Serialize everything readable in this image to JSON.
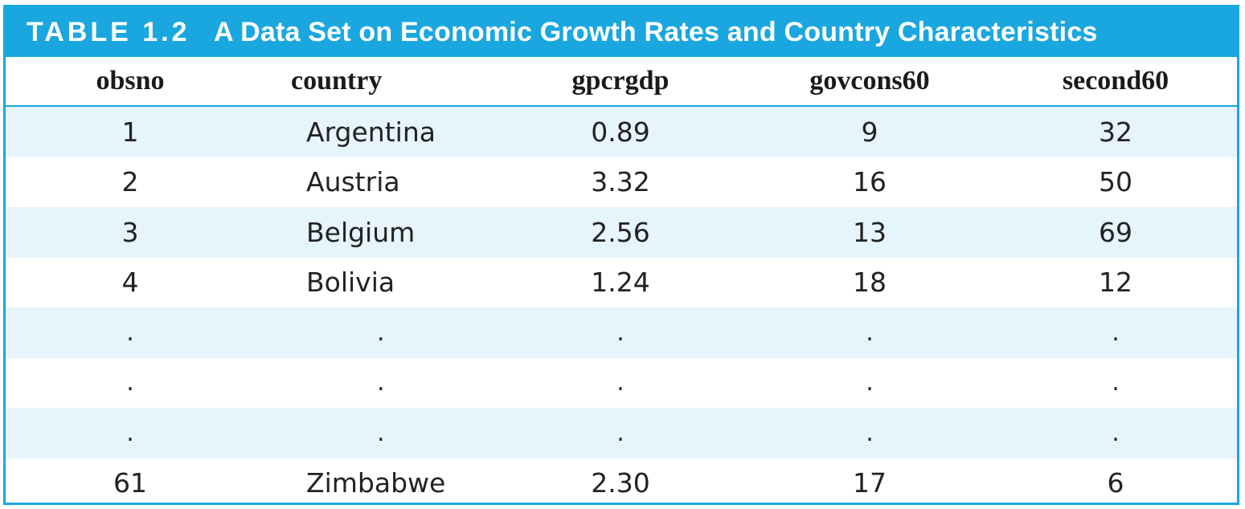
{
  "title": {
    "number": "TABLE 1.2",
    "text": "A Data Set on Economic Growth Rates and Country Characteristics"
  },
  "columns": [
    "obsno",
    "country",
    "gpcrgdp",
    "govcons60",
    "second60"
  ],
  "rows": [
    [
      "1",
      "Argentina",
      "0.89",
      "9",
      "32"
    ],
    [
      "2",
      "Austria",
      "3.32",
      "16",
      "50"
    ],
    [
      "3",
      "Belgium",
      "2.56",
      "13",
      "69"
    ],
    [
      "4",
      "Bolivia",
      "1.24",
      "18",
      "12"
    ],
    [
      ".",
      ".",
      ".",
      ".",
      "."
    ],
    [
      ".",
      ".",
      ".",
      ".",
      "."
    ],
    [
      ".",
      ".",
      ".",
      ".",
      "."
    ],
    [
      "61",
      "Zimbabwe",
      "2.30",
      "17",
      "6"
    ]
  ],
  "colors": {
    "accent": "#1aa7df",
    "row_shade": "#e6f4fb"
  }
}
